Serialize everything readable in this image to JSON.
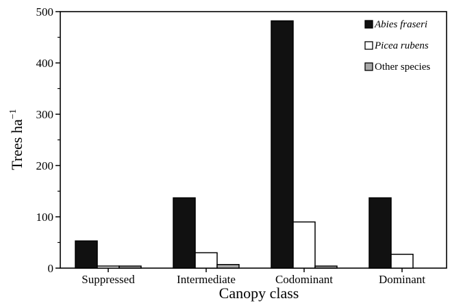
{
  "chart_data": {
    "type": "bar",
    "categories": [
      "Suppressed",
      "Intermediate",
      "Codominant",
      "Dominant"
    ],
    "series": [
      {
        "name": "Abies fraseri",
        "values": [
          53,
          137,
          482,
          137
        ],
        "color": "#111111",
        "italic": true
      },
      {
        "name": "Picea rubens",
        "values": [
          4,
          30,
          90,
          27
        ],
        "color": "#ffffff",
        "italic": true
      },
      {
        "name": "Other species",
        "values": [
          4,
          7,
          4,
          0
        ],
        "color": "#a9a9a9",
        "italic": false
      }
    ],
    "xlabel": "Canopy class",
    "ylabel": "Trees ha",
    "ylabel_superscript": "−1",
    "ylim": [
      0,
      500
    ],
    "yticks": [
      "0",
      "100",
      "200",
      "300",
      "400",
      "500"
    ],
    "grid": false,
    "legend_position": "top-right"
  }
}
